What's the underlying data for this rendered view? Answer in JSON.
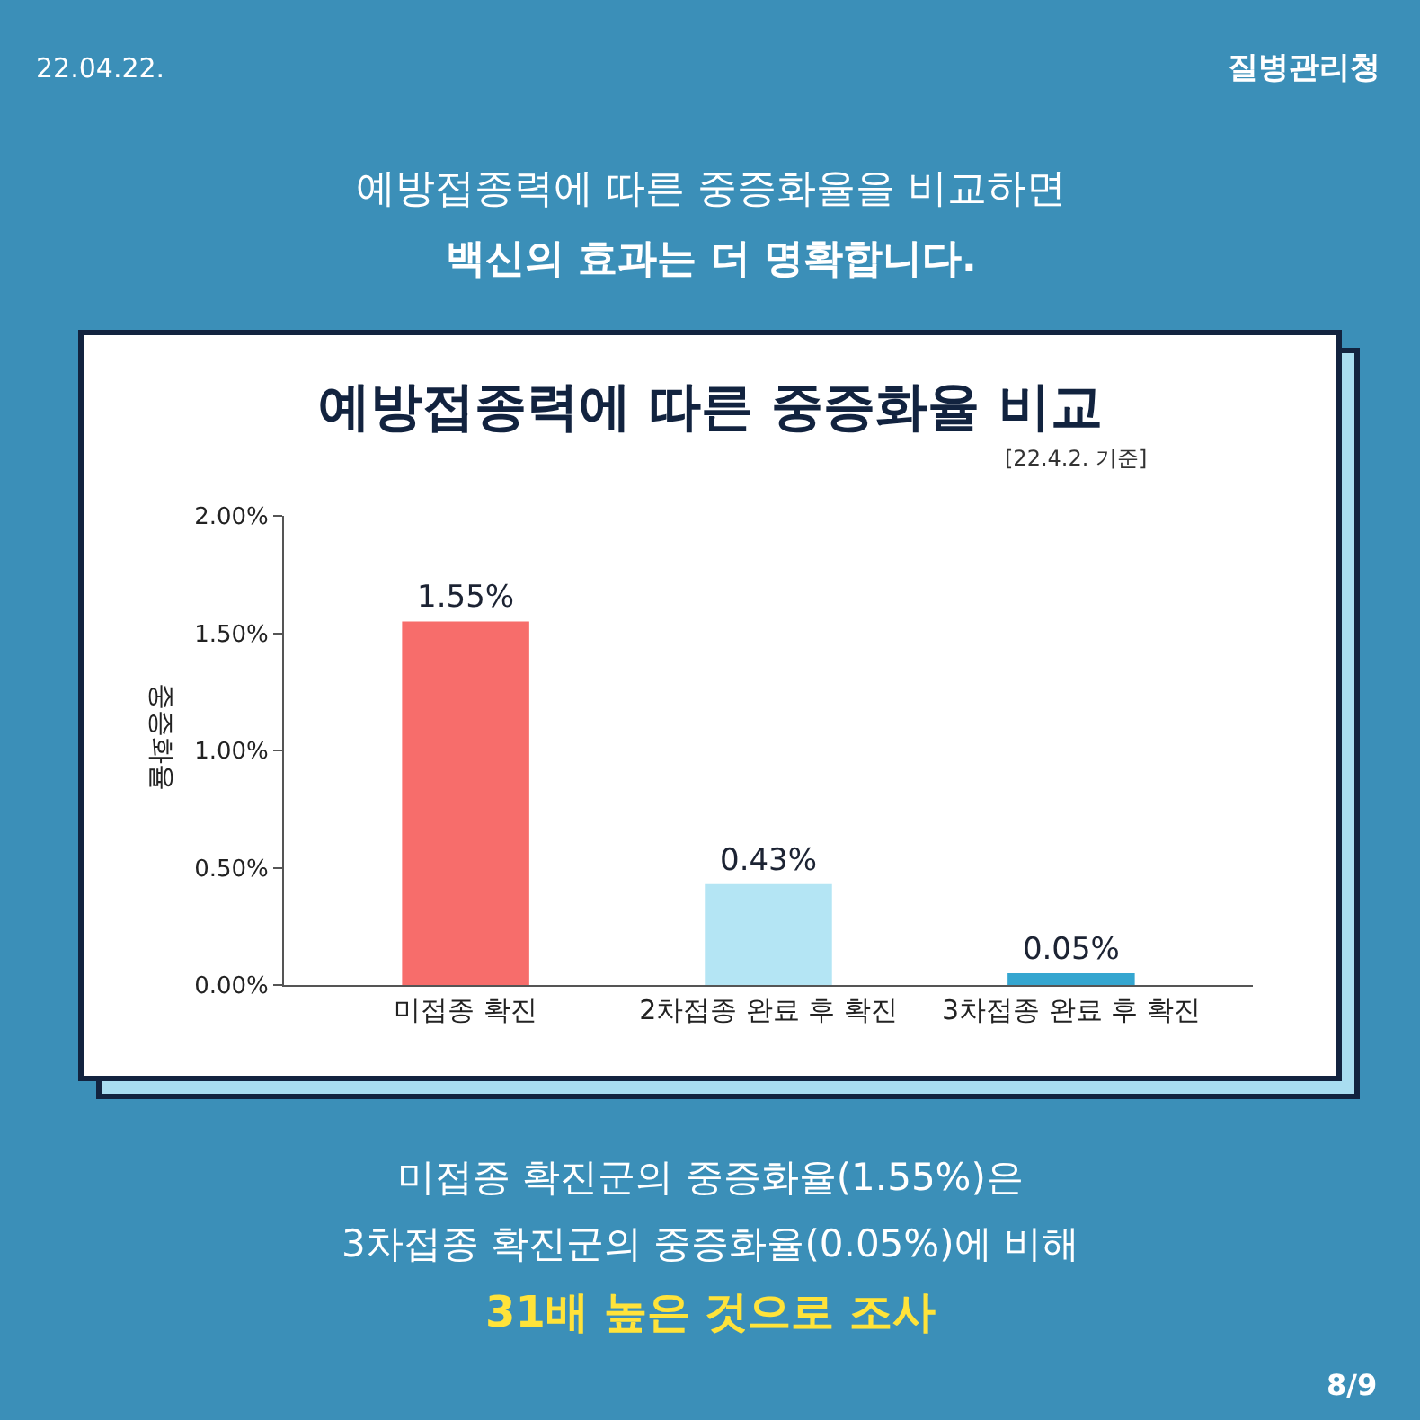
{
  "chart_data": {
    "type": "bar",
    "title": "예방접종력에 따른 중증화율 비교",
    "subtitle": "[22.4.2. 기준]",
    "ylabel": "중증화율",
    "categories": [
      "미접종 확진",
      "2차접종 완료 후 확진",
      "3차접종 완료 후 확진"
    ],
    "values": [
      1.55,
      0.43,
      0.05
    ],
    "colors": [
      "#f76d6b",
      "#b4e5f4",
      "#35a6d0"
    ],
    "value_labels": [
      "1.55%",
      "0.43%",
      "0.05%"
    ],
    "ylim": [
      0,
      2
    ],
    "yticks": [
      {
        "value": 0,
        "label": "0.00%"
      },
      {
        "value": 0.5,
        "label": "0.50%"
      },
      {
        "value": 1,
        "label": "1.00%"
      },
      {
        "value": 1.5,
        "label": "1.50%"
      },
      {
        "value": 2,
        "label": "2.00%"
      }
    ],
    "annotations": [
      "22.04.22.",
      "질병관리청",
      "예방접종력에 따른 중증화율을 비교하면",
      "백신의 효과는 더 명확합니다.",
      "미접종 확진군의 중증화율(1.55%)은",
      "3차접종 확진군의 중증화율(0.05%)에 비해",
      "31배 높은 것으로 조사",
      "8/9"
    ]
  }
}
